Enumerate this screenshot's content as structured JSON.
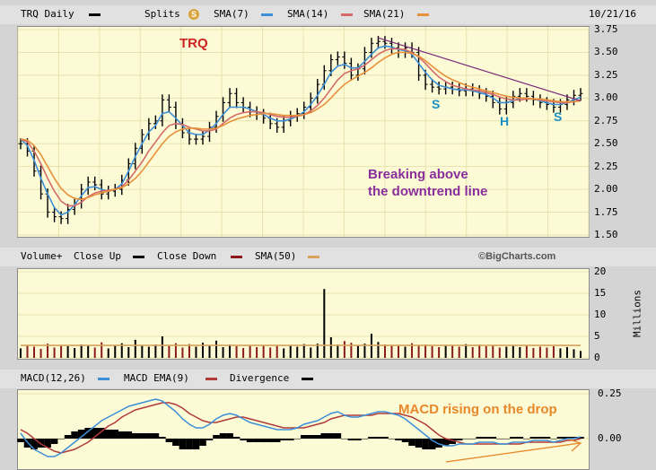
{
  "header": {
    "ticker_label": "TRQ Daily",
    "splits_label": "Splits",
    "splits_badge": "S",
    "sma7_label": "SMA(7)",
    "sma14_label": "SMA(14)",
    "sma21_label": "SMA(21)",
    "date": "10/21/16"
  },
  "volume_header": {
    "volume_label": "Volume+",
    "close_up_label": "Close Up",
    "close_down_label": "Close Down",
    "sma50_label": "SMA(50)",
    "watermark": "©BigCharts.com"
  },
  "macd_header": {
    "macd_label": "MACD(12,26)",
    "ema_label": "MACD EMA(9)",
    "divergence_label": "Divergence"
  },
  "colors": {
    "bars": "#000000",
    "sma7": "#3d8fd8",
    "sma14": "#d46a6a",
    "sma21": "#e8903a",
    "close_up": "#000000",
    "close_down": "#8b1a1a",
    "sma50": "#d7a15c",
    "macd": "#3d8fd8",
    "macd_ema": "#b03a3a",
    "divergence": "#000000",
    "trendline": "#7a2a7a",
    "annotation_red": "#cc2222",
    "annotation_purple": "#8a2e9c",
    "annotation_blue": "#1a8fc4",
    "annotation_orange": "#e8882a"
  },
  "chart_data": [
    {
      "type": "line",
      "title": "TRQ Daily",
      "y_axis_side": "right",
      "ylim": [
        1.5,
        3.75
      ],
      "yticks": [
        "3.75",
        "3.50",
        "3.25",
        "3.00",
        "2.75",
        "2.50",
        "2.25",
        "2.00",
        "1.75",
        "1.50"
      ],
      "grid": true,
      "series": [
        {
          "name": "TRQ Daily",
          "style": "ohlc-bars",
          "values": [
            2.5,
            2.42,
            2.2,
            1.95,
            1.75,
            1.7,
            1.68,
            1.78,
            1.85,
            2.0,
            2.08,
            2.05,
            1.95,
            1.98,
            2.0,
            2.1,
            2.28,
            2.45,
            2.6,
            2.72,
            2.75,
            2.98,
            2.9,
            2.72,
            2.62,
            2.55,
            2.55,
            2.58,
            2.68,
            2.8,
            2.95,
            3.05,
            2.95,
            2.9,
            2.85,
            2.82,
            2.78,
            2.72,
            2.68,
            2.75,
            2.8,
            2.83,
            2.9,
            3.0,
            3.15,
            3.3,
            3.42,
            3.45,
            3.38,
            3.25,
            3.32,
            3.5,
            3.6,
            3.62,
            3.6,
            3.55,
            3.5,
            3.55,
            3.5,
            3.25,
            3.15,
            3.12,
            3.1,
            3.12,
            3.1,
            3.08,
            3.1,
            3.08,
            3.05,
            3.02,
            2.95,
            2.88,
            2.95,
            3.02,
            3.05,
            3.02,
            2.98,
            2.95,
            2.93,
            2.9,
            2.93,
            2.98,
            3.03,
            3.05
          ]
        },
        {
          "name": "SMA(7)",
          "values": [
            2.55,
            2.48,
            2.32,
            2.12,
            1.95,
            1.8,
            1.72,
            1.75,
            1.83,
            1.93,
            2.02,
            2.03,
            2.0,
            1.98,
            2.0,
            2.06,
            2.2,
            2.36,
            2.5,
            2.63,
            2.7,
            2.83,
            2.85,
            2.78,
            2.7,
            2.62,
            2.6,
            2.6,
            2.65,
            2.72,
            2.82,
            2.9,
            2.9,
            2.9,
            2.88,
            2.85,
            2.82,
            2.78,
            2.75,
            2.75,
            2.77,
            2.8,
            2.85,
            2.93,
            3.03,
            3.15,
            3.28,
            3.35,
            3.37,
            3.33,
            3.33,
            3.4,
            3.48,
            3.55,
            3.57,
            3.56,
            3.53,
            3.52,
            3.48,
            3.38,
            3.28,
            3.2,
            3.14,
            3.12,
            3.1,
            3.09,
            3.09,
            3.08,
            3.06,
            3.04,
            3.0,
            2.95,
            2.95,
            2.97,
            3.0,
            3.0,
            2.99,
            2.97,
            2.95,
            2.93,
            2.93,
            2.95,
            2.98,
            3.01
          ]
        },
        {
          "name": "SMA(14)",
          "values": [
            2.55,
            2.52,
            2.42,
            2.28,
            2.12,
            1.98,
            1.87,
            1.82,
            1.82,
            1.86,
            1.92,
            1.96,
            1.98,
            1.99,
            2.0,
            2.03,
            2.1,
            2.2,
            2.3,
            2.42,
            2.52,
            2.62,
            2.7,
            2.72,
            2.71,
            2.68,
            2.66,
            2.64,
            2.64,
            2.66,
            2.72,
            2.78,
            2.82,
            2.84,
            2.85,
            2.85,
            2.84,
            2.82,
            2.8,
            2.79,
            2.79,
            2.8,
            2.82,
            2.86,
            2.92,
            3.0,
            3.1,
            3.2,
            3.27,
            3.3,
            3.32,
            3.36,
            3.42,
            3.48,
            3.52,
            3.54,
            3.54,
            3.53,
            3.5,
            3.45,
            3.38,
            3.3,
            3.23,
            3.18,
            3.14,
            3.12,
            3.1,
            3.09,
            3.08,
            3.06,
            3.04,
            3.01,
            2.99,
            2.98,
            2.98,
            2.99,
            2.99,
            2.98,
            2.97,
            2.96,
            2.95,
            2.95,
            2.96,
            2.98
          ]
        },
        {
          "name": "SMA(21)",
          "values": [
            2.55,
            2.54,
            2.48,
            2.38,
            2.25,
            2.12,
            2.01,
            1.94,
            1.9,
            1.89,
            1.91,
            1.94,
            1.96,
            1.98,
            2.0,
            2.02,
            2.06,
            2.12,
            2.2,
            2.3,
            2.4,
            2.5,
            2.58,
            2.63,
            2.66,
            2.67,
            2.67,
            2.66,
            2.66,
            2.67,
            2.7,
            2.74,
            2.77,
            2.79,
            2.81,
            2.82,
            2.83,
            2.83,
            2.82,
            2.81,
            2.81,
            2.81,
            2.82,
            2.84,
            2.88,
            2.93,
            3.0,
            3.08,
            3.15,
            3.2,
            3.24,
            3.28,
            3.33,
            3.39,
            3.44,
            3.48,
            3.5,
            3.5,
            3.49,
            3.46,
            3.41,
            3.35,
            3.29,
            3.24,
            3.2,
            3.17,
            3.14,
            3.12,
            3.1,
            3.08,
            3.06,
            3.04,
            3.02,
            3.01,
            3.0,
            3.0,
            2.99,
            2.99,
            2.98,
            2.97,
            2.96,
            2.96,
            2.96,
            2.97
          ]
        }
      ],
      "annotations": [
        "TRQ",
        "Breaking above",
        "the downtrend line",
        "S",
        "H",
        "S"
      ]
    },
    {
      "type": "bar",
      "title": "Volume+",
      "ylim": [
        0,
        20
      ],
      "yticks": [
        "20",
        "15",
        "10",
        "5",
        "0"
      ],
      "ylabel": "Millions",
      "grid": true,
      "series": [
        {
          "name": "Volume",
          "values": [
            2.2,
            3.0,
            2.6,
            2.1,
            3.3,
            2.4,
            2.9,
            2.7,
            2.3,
            3.1,
            2.8,
            2.4,
            3.6,
            2.2,
            2.9,
            3.4,
            2.5,
            4.2,
            3.0,
            2.6,
            3.1,
            5.0,
            2.8,
            3.4,
            2.4,
            3.2,
            2.6,
            3.5,
            2.9,
            4.0,
            2.5,
            3.1,
            2.7,
            2.3,
            2.8,
            2.5,
            3.0,
            2.4,
            2.8,
            2.2,
            2.9,
            2.6,
            3.2,
            2.4,
            3.3,
            16.0,
            4.8,
            3.1,
            3.9,
            3.5,
            2.8,
            3.3,
            5.6,
            3.7,
            3.1,
            3.0,
            2.8,
            2.6,
            3.4,
            2.9,
            3.1,
            2.7,
            2.5,
            2.8,
            3.0,
            2.6,
            3.2,
            2.5,
            3.1,
            2.7,
            2.9,
            2.4,
            2.6,
            3.0,
            2.5,
            2.8,
            2.3,
            2.6,
            2.4,
            2.7,
            2.2,
            2.5,
            2.0,
            1.6
          ]
        },
        {
          "name": "SMA(50)",
          "values": [
            2.9,
            2.9,
            2.9,
            2.9,
            2.9,
            2.9,
            2.9,
            2.9,
            2.9,
            2.9,
            2.9,
            2.9,
            2.9,
            2.9,
            2.9,
            2.9,
            2.9,
            2.9,
            2.9,
            2.9,
            2.9,
            2.9,
            2.9,
            2.9,
            2.9,
            2.9,
            2.9,
            2.9,
            2.9,
            2.9,
            2.9,
            2.9,
            2.9,
            2.9,
            2.9,
            2.9,
            2.9,
            2.9,
            2.9,
            2.9,
            2.9,
            2.9,
            2.9,
            2.9,
            2.9,
            2.9,
            2.9,
            2.9,
            2.9,
            2.9,
            2.9,
            2.9,
            2.9,
            2.9,
            2.9,
            2.9,
            2.9,
            2.9,
            2.9,
            2.9,
            2.9,
            2.9,
            2.9,
            2.9,
            2.9,
            2.9,
            2.9,
            2.9,
            2.9,
            2.9,
            2.9,
            2.9,
            2.9,
            2.9,
            2.9,
            2.9,
            2.9,
            2.9,
            2.9,
            2.9,
            2.9,
            2.9,
            2.9,
            2.9
          ]
        }
      ]
    },
    {
      "type": "line",
      "title": "MACD(12,26)",
      "ylim": [
        -0.1,
        0.25
      ],
      "yticks": [
        "0.25",
        "0.00"
      ],
      "grid": true,
      "series": [
        {
          "name": "MACD(12,26)",
          "values": [
            0.03,
            -0.02,
            -0.06,
            -0.08,
            -0.1,
            -0.1,
            -0.08,
            -0.05,
            -0.02,
            0.01,
            0.04,
            0.07,
            0.1,
            0.12,
            0.14,
            0.16,
            0.18,
            0.19,
            0.2,
            0.21,
            0.22,
            0.21,
            0.18,
            0.15,
            0.11,
            0.08,
            0.06,
            0.06,
            0.08,
            0.11,
            0.13,
            0.14,
            0.13,
            0.11,
            0.09,
            0.08,
            0.07,
            0.06,
            0.05,
            0.05,
            0.05,
            0.06,
            0.08,
            0.09,
            0.1,
            0.12,
            0.14,
            0.15,
            0.13,
            0.12,
            0.12,
            0.13,
            0.14,
            0.15,
            0.15,
            0.14,
            0.13,
            0.11,
            0.08,
            0.05,
            0.02,
            -0.01,
            -0.03,
            -0.04,
            -0.04,
            -0.03,
            -0.03,
            -0.03,
            -0.02,
            -0.02,
            -0.02,
            -0.03,
            -0.03,
            -0.02,
            -0.02,
            -0.02,
            -0.01,
            -0.01,
            -0.01,
            -0.02,
            -0.01,
            0.0,
            0.0,
            0.01
          ]
        },
        {
          "name": "MACD EMA(9)",
          "values": [
            0.05,
            0.03,
            0.0,
            -0.03,
            -0.05,
            -0.07,
            -0.08,
            -0.07,
            -0.06,
            -0.04,
            -0.02,
            0.01,
            0.04,
            0.07,
            0.09,
            0.12,
            0.14,
            0.16,
            0.17,
            0.18,
            0.19,
            0.2,
            0.2,
            0.19,
            0.17,
            0.14,
            0.12,
            0.1,
            0.09,
            0.09,
            0.1,
            0.11,
            0.12,
            0.12,
            0.11,
            0.1,
            0.09,
            0.08,
            0.07,
            0.06,
            0.06,
            0.06,
            0.06,
            0.07,
            0.08,
            0.09,
            0.11,
            0.12,
            0.13,
            0.13,
            0.13,
            0.13,
            0.13,
            0.14,
            0.14,
            0.14,
            0.14,
            0.13,
            0.12,
            0.1,
            0.08,
            0.05,
            0.02,
            0.0,
            -0.01,
            -0.02,
            -0.03,
            -0.03,
            -0.03,
            -0.03,
            -0.03,
            -0.03,
            -0.03,
            -0.03,
            -0.03,
            -0.02,
            -0.02,
            -0.02,
            -0.02,
            -0.02,
            -0.02,
            -0.01,
            -0.01,
            0.0
          ]
        },
        {
          "name": "Divergence",
          "values": [
            -0.02,
            -0.05,
            -0.06,
            -0.05,
            -0.05,
            -0.03,
            0.0,
            0.02,
            0.04,
            0.05,
            0.06,
            0.06,
            0.06,
            0.05,
            0.05,
            0.04,
            0.04,
            0.03,
            0.03,
            0.03,
            0.03,
            0.01,
            -0.02,
            -0.04,
            -0.06,
            -0.06,
            -0.06,
            -0.04,
            -0.01,
            0.02,
            0.03,
            0.03,
            0.01,
            -0.01,
            -0.02,
            -0.02,
            -0.02,
            -0.02,
            -0.02,
            -0.01,
            -0.01,
            0.0,
            0.02,
            0.02,
            0.02,
            0.03,
            0.03,
            0.03,
            0.0,
            -0.01,
            -0.01,
            0.0,
            0.01,
            0.01,
            0.01,
            0.0,
            -0.01,
            -0.02,
            -0.04,
            -0.05,
            -0.06,
            -0.06,
            -0.05,
            -0.04,
            -0.03,
            -0.01,
            0.0,
            0.0,
            0.01,
            0.01,
            0.01,
            0.0,
            0.0,
            0.01,
            0.01,
            0.0,
            0.01,
            0.01,
            0.01,
            0.0,
            0.01,
            0.01,
            0.01,
            0.01
          ]
        }
      ],
      "annotations": [
        "MACD rising on the drop"
      ]
    }
  ]
}
